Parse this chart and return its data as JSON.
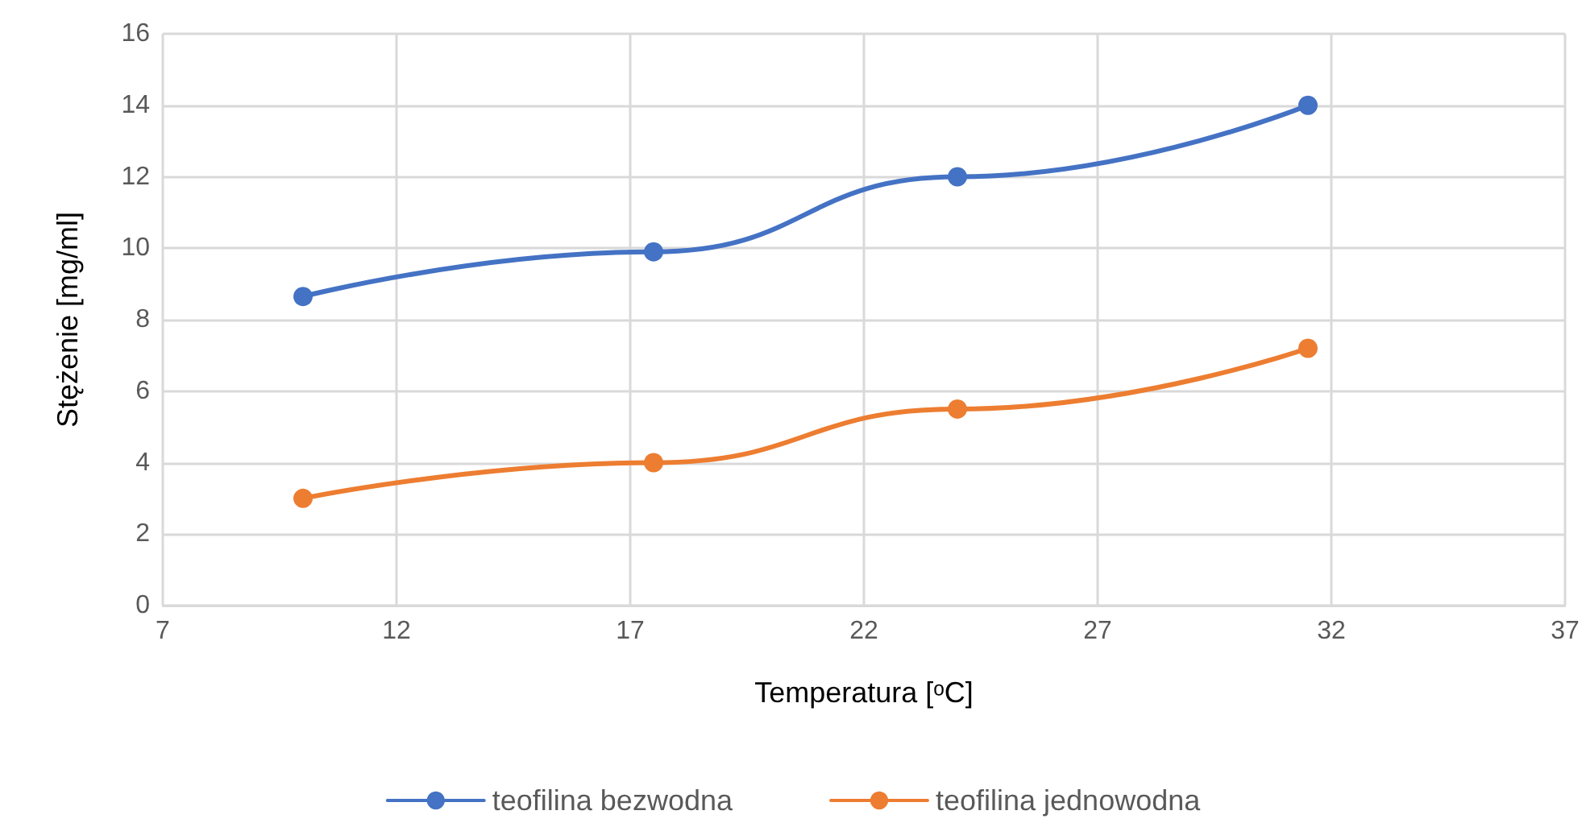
{
  "chart_data": {
    "type": "line",
    "x": [
      10,
      17.5,
      24,
      31.5
    ],
    "series": [
      {
        "name": "teofilina bezwodna",
        "color": "#4472c4",
        "values": [
          8.65,
          9.9,
          12,
          14
        ]
      },
      {
        "name": "teofilina jednowodna",
        "color": "#ed7d31",
        "values": [
          3,
          4,
          5.5,
          7.2
        ]
      }
    ],
    "xlabel": "Temperatura [ᵒC]",
    "ylabel": "Stężenie [mg/ml]",
    "xlim": [
      7,
      37
    ],
    "xticks": [
      7,
      12,
      17,
      22,
      27,
      32,
      37
    ],
    "ylim": [
      0,
      16
    ],
    "yticks": [
      0,
      2,
      4,
      6,
      8,
      10,
      12,
      14,
      16
    ],
    "grid": true,
    "legend": "bottom",
    "marker": "circle",
    "line_style": "solid"
  }
}
